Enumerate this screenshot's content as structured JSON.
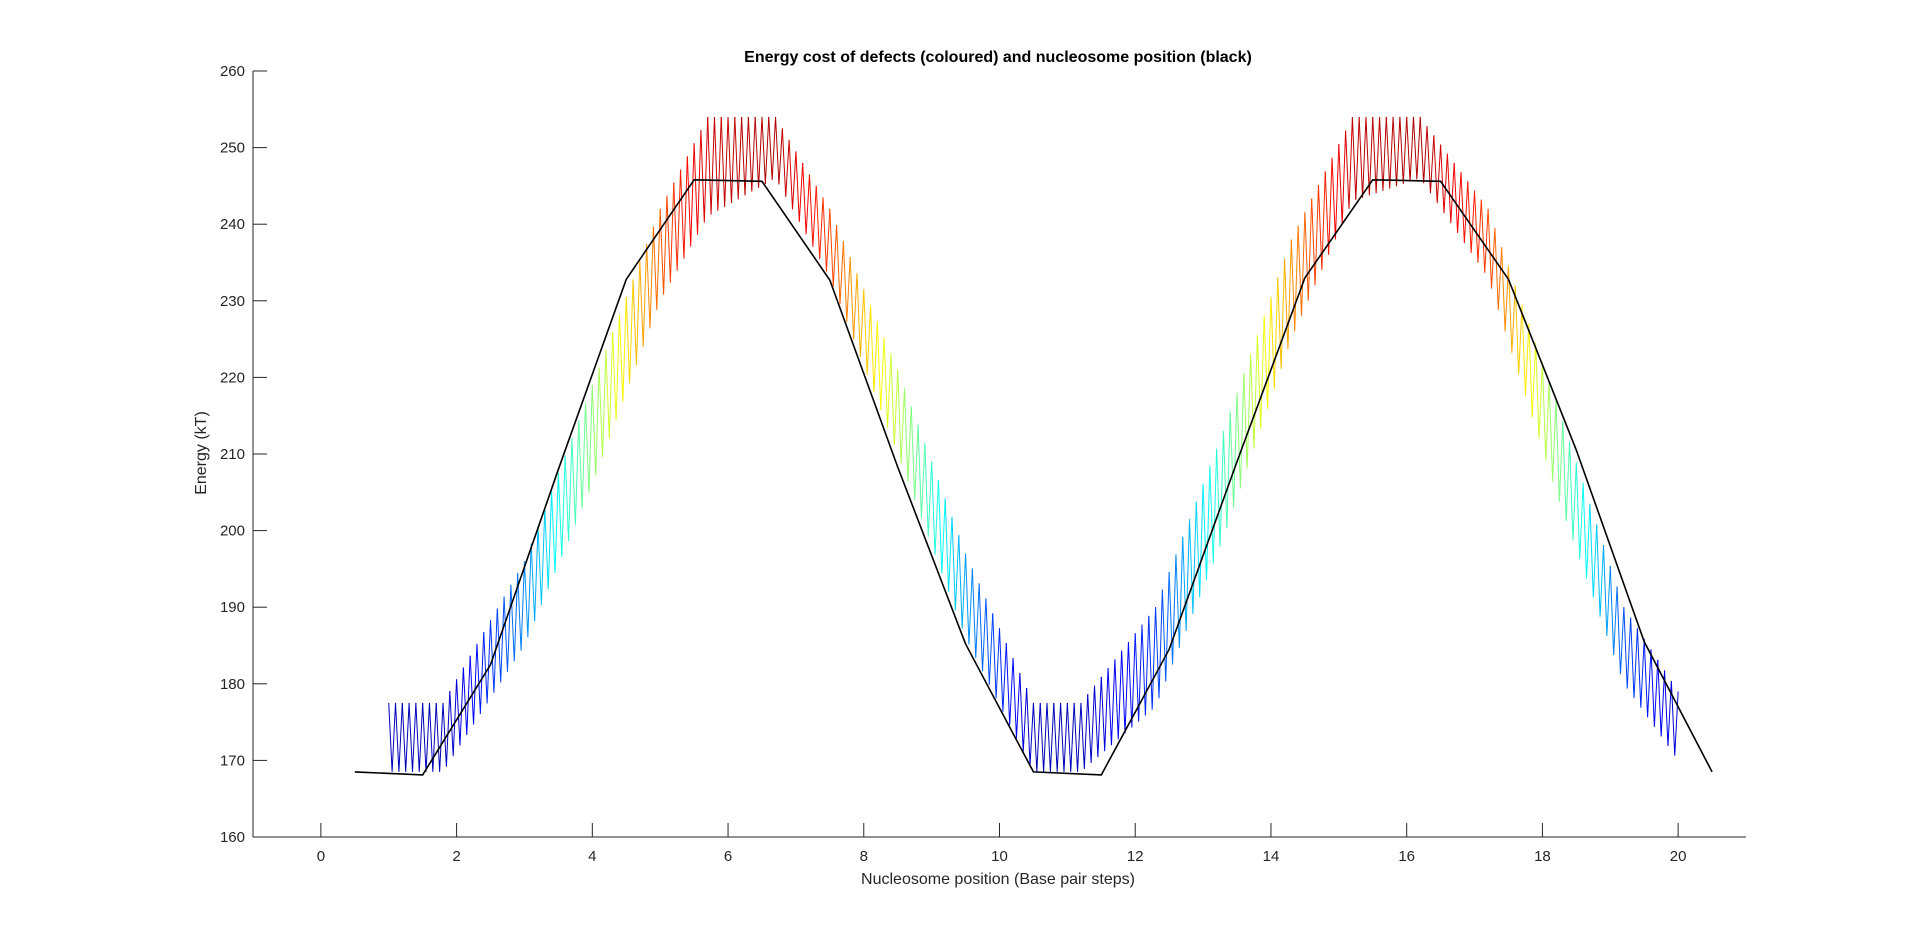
{
  "chart_data": {
    "type": "line",
    "title": "Energy cost of defects (coloured) and nucleosome position (black)",
    "xlabel": "Nucleosome position (Base pair steps)",
    "ylabel": "Energy (kT)",
    "xlim": [
      -1,
      21
    ],
    "ylim": [
      160,
      260
    ],
    "xticks": [
      "0",
      "2",
      "4",
      "6",
      "8",
      "10",
      "12",
      "14",
      "16",
      "18",
      "20"
    ],
    "yticks": [
      "160",
      "170",
      "180",
      "190",
      "200",
      "210",
      "220",
      "230",
      "240",
      "250",
      "260"
    ],
    "grid": false,
    "legend": "none",
    "series": [
      {
        "color": "#000000",
        "style": "solid",
        "x": [
          0.5,
          1.5,
          2.5,
          3.5,
          4.5,
          5.5,
          6.5,
          7.5,
          8.5,
          9.5,
          10.5,
          11.5,
          12.5,
          13.5,
          14.5,
          15.5,
          16.5,
          17.5,
          18.5,
          19.5,
          20.5
        ],
        "y": [
          168.5,
          168.1,
          182.5,
          208.0,
          232.8,
          245.8,
          245.6,
          232.7,
          208.3,
          185.2,
          168.5,
          168.1,
          184.5,
          209.0,
          233.0,
          245.8,
          245.6,
          232.8,
          210.5,
          185.5,
          168.5
        ]
      },
      {
        "colormap": "jet",
        "style": "oscillating defects",
        "x_start": 1.0,
        "x_end": 20.0,
        "envelope_x": [
          1.0,
          1.8,
          3.0,
          4.0,
          5.0,
          5.7,
          6.7,
          7.5,
          8.5,
          9.5,
          10.5,
          11.2,
          12.3,
          13.3,
          14.3,
          15.2,
          16.2,
          17.2,
          18.2,
          19.2,
          20.0
        ],
        "envelope_high": [
          177.5,
          177.5,
          196.0,
          219.0,
          242.0,
          254.0,
          254.0,
          242.0,
          221.0,
          197.0,
          177.5,
          177.5,
          190.0,
          213.0,
          238.0,
          254.0,
          254.0,
          242.0,
          217.0,
          190.0,
          179.0
        ],
        "envelope_low": [
          168.5,
          168.5,
          185.0,
          206.0,
          230.0,
          241.0,
          246.0,
          233.0,
          210.0,
          186.0,
          168.5,
          168.5,
          177.0,
          199.0,
          225.0,
          243.0,
          246.0,
          233.0,
          205.0,
          180.0,
          170.0
        ]
      }
    ]
  }
}
